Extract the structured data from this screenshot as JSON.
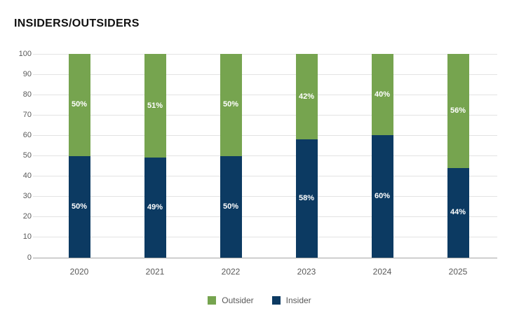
{
  "title": "INSIDERS/OUTSIDERS",
  "chart_data": {
    "type": "bar",
    "subtype": "stacked-column",
    "title": "INSIDERS/OUTSIDERS",
    "categories": [
      "2020",
      "2021",
      "2022",
      "2023",
      "2024",
      "2025"
    ],
    "series": [
      {
        "name": "Outsider",
        "color": "#76A44F",
        "values": [
          50,
          51,
          50,
          42,
          40,
          56
        ],
        "data_labels": [
          "50%",
          "51%",
          "50%",
          "42%",
          "40%",
          "56%"
        ]
      },
      {
        "name": "Insider",
        "color": "#0C3A62",
        "values": [
          50,
          49,
          50,
          58,
          60,
          44
        ],
        "data_labels": [
          "50%",
          "49%",
          "50%",
          "58%",
          "60%",
          "44%"
        ]
      }
    ],
    "stack_order_top_to_bottom": [
      "Outsider",
      "Insider"
    ],
    "xlabel": "",
    "ylabel": "",
    "ylim": [
      0,
      100
    ],
    "yticks": [
      0,
      10,
      20,
      30,
      40,
      50,
      60,
      70,
      80,
      90,
      100
    ],
    "grid": "horizontal",
    "legend": {
      "position": "bottom",
      "entries": [
        {
          "label": "Outsider",
          "color": "#76A44F"
        },
        {
          "label": "Insider",
          "color": "#0C3A62"
        }
      ]
    }
  },
  "colors": {
    "background": "#FFFFFF",
    "title_text": "#111111",
    "axis_text": "#595959",
    "gridline": "#E3E3E3",
    "axis_line": "#A6A6A6",
    "data_label_text": "#FFFFFF",
    "outsider_green": "#76A44F",
    "insider_navy": "#0C3A62"
  }
}
